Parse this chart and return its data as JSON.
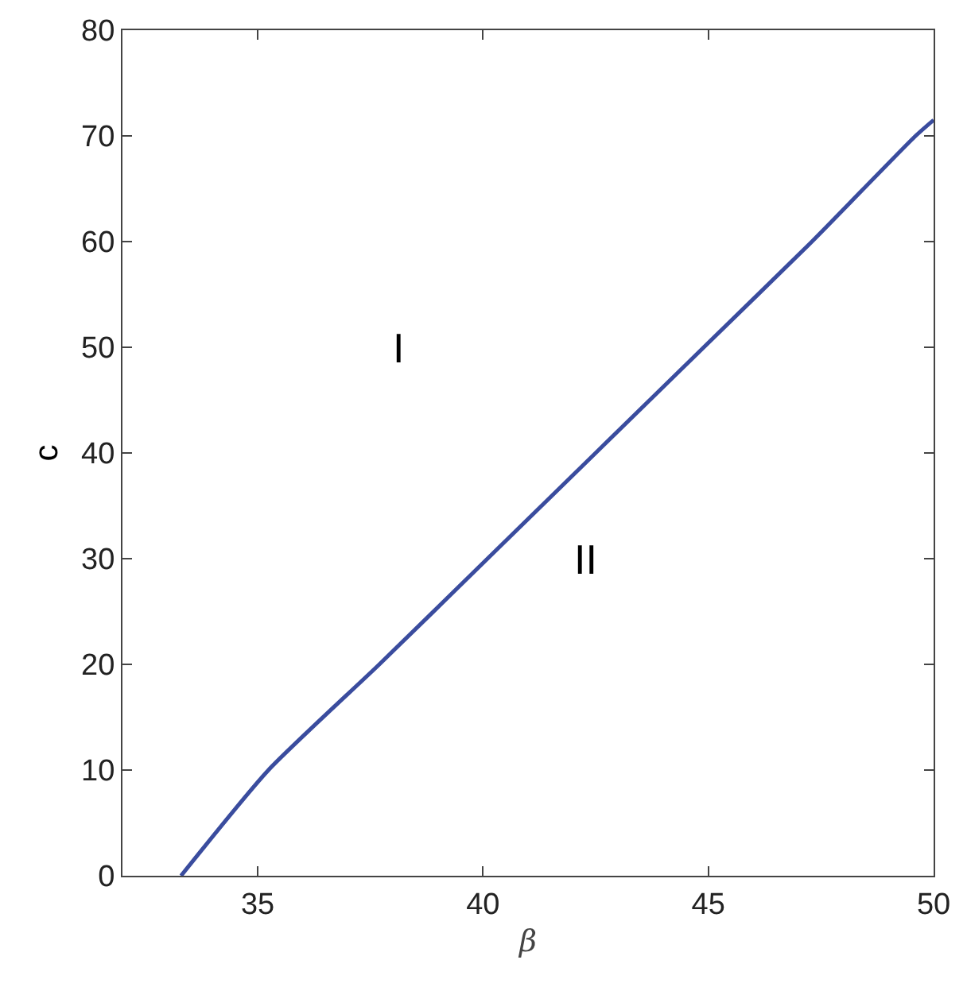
{
  "chart_data": {
    "type": "line",
    "x": [
      33.3,
      35.24,
      37.7,
      40.1,
      42.5,
      44.9,
      47.3,
      49.6,
      50
    ],
    "series": [
      {
        "color": "#3a4c9e",
        "values": [
          0,
          10,
          20,
          30,
          40,
          50,
          60,
          70,
          71.5
        ]
      }
    ],
    "xlabel": "β",
    "ylabel": "c",
    "xlim": [
      32,
      50
    ],
    "xticks": [
      35,
      40,
      45,
      50
    ],
    "ylim": [
      0,
      80
    ],
    "yticks": [
      0,
      10,
      20,
      30,
      40,
      50,
      60,
      70,
      80
    ],
    "annotations": [
      "I",
      "II"
    ],
    "marker": "none",
    "line_style": "solid"
  }
}
